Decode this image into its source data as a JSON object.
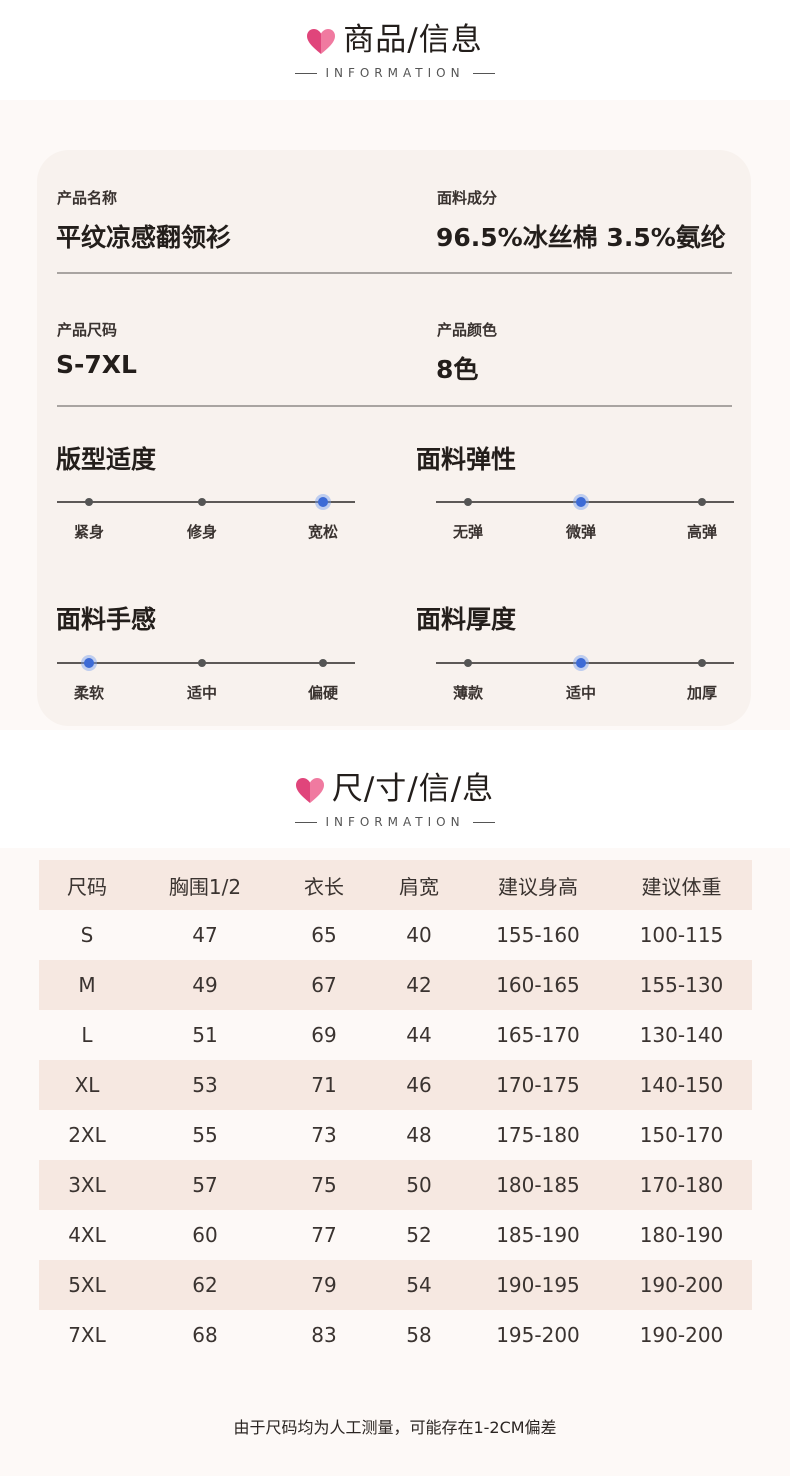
{
  "section1": {
    "title": "商品/信息",
    "subtitle": "INFORMATION"
  },
  "product": {
    "name_label": "产品名称",
    "name_value": "平纹凉感翻领衫",
    "fabric_label": "面料成分",
    "fabric_value": "96.5%冰丝棉 3.5%氨纶",
    "size_label": "产品尺码",
    "size_value": "S-7XL",
    "color_label": "产品颜色",
    "color_value": "8色"
  },
  "scales": [
    {
      "title": "版型适度",
      "options": [
        "紧身",
        "修身",
        "宽松"
      ],
      "selected": 2
    },
    {
      "title": "面料弹性",
      "options": [
        "无弹",
        "微弹",
        "高弹"
      ],
      "selected": 1
    },
    {
      "title": "面料手感",
      "options": [
        "柔软",
        "适中",
        "偏硬"
      ],
      "selected": 0
    },
    {
      "title": "面料厚度",
      "options": [
        "薄款",
        "适中",
        "加厚"
      ],
      "selected": 1
    }
  ],
  "section2": {
    "title": "尺/寸/信/息",
    "subtitle": "INFORMATION"
  },
  "size_table": {
    "headers": [
      "尺码",
      "胸围1/2",
      "衣长",
      "肩宽",
      "建议身高",
      "建议体重"
    ],
    "rows": [
      [
        "S",
        "47",
        "65",
        "40",
        "155-160",
        "100-115"
      ],
      [
        "M",
        "49",
        "67",
        "42",
        "160-165",
        "155-130"
      ],
      [
        "L",
        "51",
        "69",
        "44",
        "165-170",
        "130-140"
      ],
      [
        "XL",
        "53",
        "71",
        "46",
        "170-175",
        "140-150"
      ],
      [
        "2XL",
        "55",
        "73",
        "48",
        "175-180",
        "150-170"
      ],
      [
        "3XL",
        "57",
        "75",
        "50",
        "180-185",
        "170-180"
      ],
      [
        "4XL",
        "60",
        "77",
        "52",
        "185-190",
        "180-190"
      ],
      [
        "5XL",
        "62",
        "79",
        "54",
        "190-195",
        "190-200"
      ],
      [
        "7XL",
        "68",
        "83",
        "58",
        "195-200",
        "190-200"
      ]
    ]
  },
  "note": "由于尺码均为人工测量，可能存在1-2CM偏差",
  "colors": {
    "accent": "#3d6bd6",
    "heart_left": "#e0457b",
    "heart_right": "#f07aa0",
    "table_shade": "#f6e8e1",
    "card_bg": "#f8f2ee"
  }
}
